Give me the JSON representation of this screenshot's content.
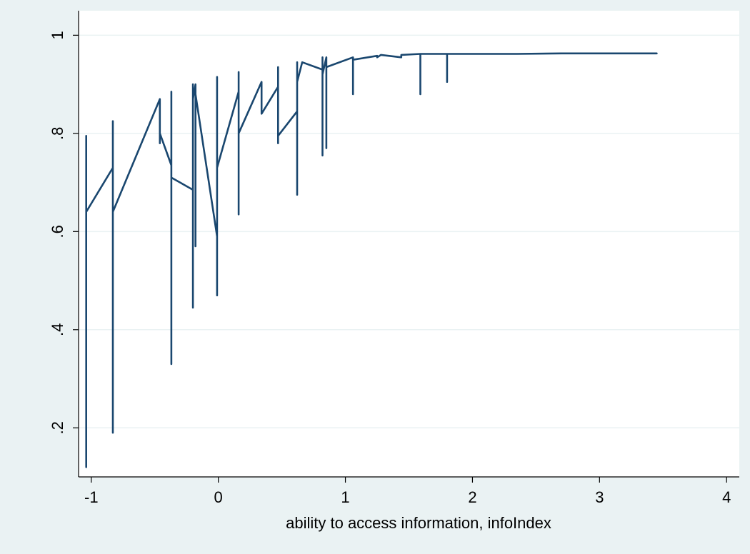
{
  "chart_data": {
    "type": "line",
    "title": "",
    "xlabel": "ability to access information, infoIndex",
    "ylabel": "",
    "xlim": [
      -1.1,
      4.1
    ],
    "ylim": [
      0.1,
      1.05
    ],
    "x_ticks": [
      -1,
      0,
      1,
      2,
      3,
      4
    ],
    "x_tick_labels": [
      "-1",
      "0",
      "1",
      "2",
      "3",
      "4"
    ],
    "y_ticks": [
      0.2,
      0.4,
      0.6,
      0.8,
      1.0
    ],
    "y_tick_labels": [
      ".2",
      ".4",
      ".6",
      ".8",
      "1"
    ],
    "grid": "horizontal",
    "colors": {
      "line": "#1a476f",
      "plot_bg": "#ffffff",
      "outer_bg": "#eaf2f3",
      "grid": "#eaf2f3"
    },
    "series": [
      {
        "points": [
          [
            -1.04,
            0.795
          ],
          [
            -1.04,
            0.12
          ],
          [
            -1.04,
            0.64
          ],
          [
            -0.83,
            0.73
          ],
          [
            -0.83,
            0.825
          ],
          [
            -0.83,
            0.19
          ],
          [
            -0.83,
            0.64
          ],
          [
            -0.46,
            0.87
          ],
          [
            -0.46,
            0.78
          ],
          [
            -0.46,
            0.8
          ],
          [
            -0.37,
            0.735
          ],
          [
            -0.37,
            0.885
          ],
          [
            -0.37,
            0.33
          ],
          [
            -0.37,
            0.71
          ],
          [
            -0.2,
            0.685
          ],
          [
            -0.2,
            0.9
          ],
          [
            -0.2,
            0.445
          ],
          [
            -0.2,
            0.87
          ],
          [
            -0.18,
            0.9
          ],
          [
            -0.18,
            0.57
          ],
          [
            -0.18,
            0.88
          ],
          [
            -0.01,
            0.59
          ],
          [
            -0.01,
            0.915
          ],
          [
            -0.01,
            0.47
          ],
          [
            -0.01,
            0.73
          ],
          [
            0.16,
            0.885
          ],
          [
            0.16,
            0.925
          ],
          [
            0.16,
            0.635
          ],
          [
            0.16,
            0.8
          ],
          [
            0.34,
            0.905
          ],
          [
            0.34,
            0.84
          ],
          [
            0.47,
            0.895
          ],
          [
            0.47,
            0.935
          ],
          [
            0.47,
            0.78
          ],
          [
            0.47,
            0.795
          ],
          [
            0.62,
            0.845
          ],
          [
            0.62,
            0.945
          ],
          [
            0.62,
            0.675
          ],
          [
            0.62,
            0.905
          ],
          [
            0.66,
            0.945
          ],
          [
            0.82,
            0.93
          ],
          [
            0.82,
            0.955
          ],
          [
            0.82,
            0.755
          ],
          [
            0.82,
            0.92
          ],
          [
            0.85,
            0.955
          ],
          [
            0.85,
            0.77
          ],
          [
            0.85,
            0.935
          ],
          [
            1.06,
            0.955
          ],
          [
            1.06,
            0.88
          ],
          [
            1.06,
            0.95
          ],
          [
            1.25,
            0.958
          ],
          [
            1.25,
            0.955
          ],
          [
            1.28,
            0.96
          ],
          [
            1.44,
            0.955
          ],
          [
            1.44,
            0.96
          ],
          [
            1.59,
            0.962
          ],
          [
            1.59,
            0.88
          ],
          [
            1.59,
            0.962
          ],
          [
            1.8,
            0.962
          ],
          [
            1.8,
            0.905
          ],
          [
            1.8,
            0.962
          ],
          [
            2.18,
            0.962
          ],
          [
            2.35,
            0.962
          ],
          [
            2.7,
            0.963
          ],
          [
            3.45,
            0.963
          ]
        ]
      }
    ]
  }
}
